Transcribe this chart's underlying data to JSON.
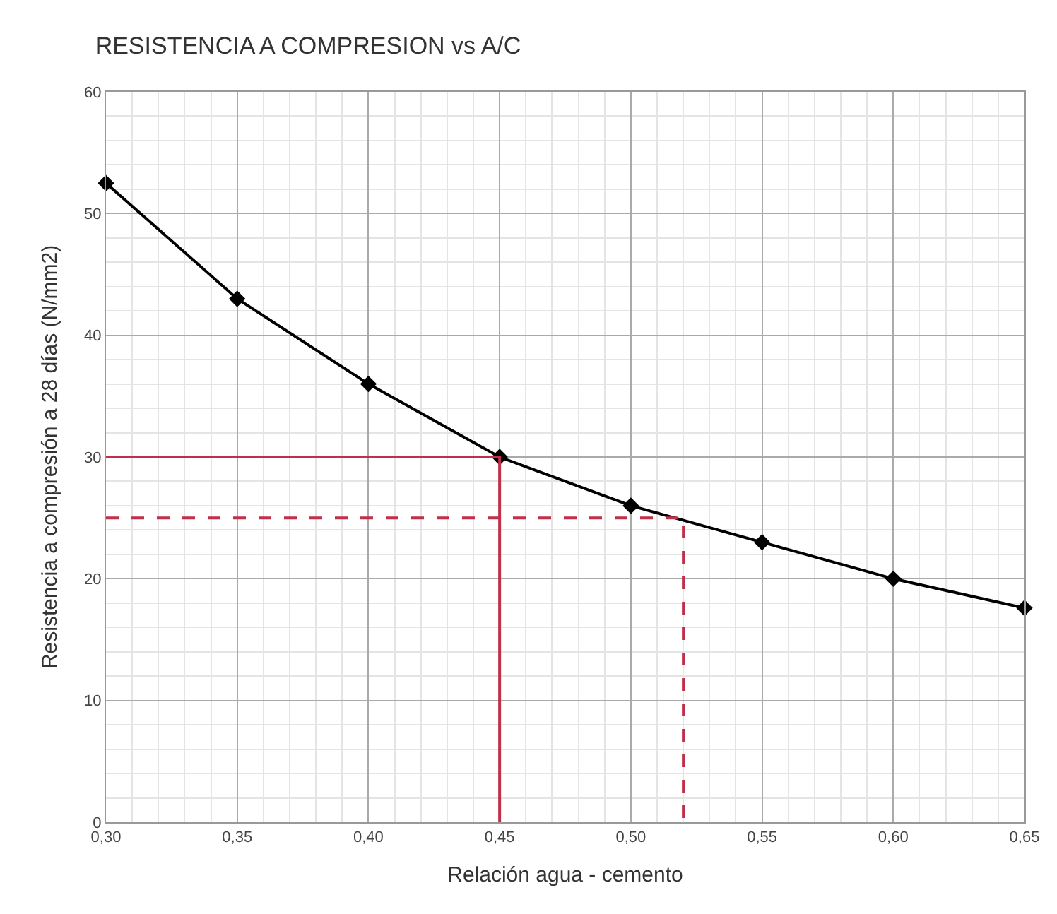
{
  "chart_data": {
    "type": "line",
    "title": "RESISTENCIA A COMPRESION vs A/C",
    "xlabel": "Relación agua - cemento",
    "ylabel": "Resistencia a compresión a 28 días (N/mm2)",
    "x": [
      0.3,
      0.35,
      0.4,
      0.45,
      0.5,
      0.55,
      0.6,
      0.65
    ],
    "series": [
      {
        "color": "#000000",
        "values": [
          52.5,
          43,
          36,
          30,
          26,
          23,
          20,
          17.6
        ],
        "marker": "diamond",
        "line_style": "solid"
      },
      {
        "type": "line",
        "color": "#c0304a",
        "x": [
          0.3,
          0.45,
          0.45
        ],
        "values": [
          30,
          30,
          0
        ],
        "marker": "none",
        "line_style": "solid"
      },
      {
        "type": "line",
        "color": "#c0304a",
        "x": [
          0.3,
          0.52,
          0.52
        ],
        "values": [
          25,
          25,
          0
        ],
        "marker": "none",
        "line_style": "dashed"
      }
    ],
    "xlim": [
      0.3,
      0.65
    ],
    "xticks": [
      {
        "value": 0.3,
        "label": "0,30"
      },
      {
        "value": 0.35,
        "label": "0,35"
      },
      {
        "value": 0.4,
        "label": "0,40"
      },
      {
        "value": 0.45,
        "label": "0,45"
      },
      {
        "value": 0.5,
        "label": "0,50"
      },
      {
        "value": 0.55,
        "label": "0,55"
      },
      {
        "value": 0.6,
        "label": "0,60"
      },
      {
        "value": 0.65,
        "label": "0,65"
      }
    ],
    "ylim": [
      0,
      60
    ],
    "yticks": [
      0,
      10,
      20,
      30,
      40,
      50,
      60
    ],
    "grid": true,
    "legend": false
  }
}
